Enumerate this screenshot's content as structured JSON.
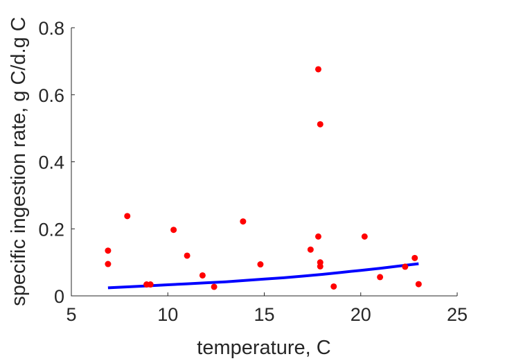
{
  "chart_data": {
    "type": "scatter",
    "title": "",
    "xlabel": "temperature, C",
    "ylabel": "specific ingestion rate, g C/d.g C",
    "xlim": [
      5,
      25
    ],
    "ylim": [
      0,
      0.8
    ],
    "xticks": [
      5,
      10,
      15,
      20,
      25
    ],
    "xtick_labels": [
      "5",
      "10",
      "15",
      "20",
      "25"
    ],
    "yticks": [
      0,
      0.2,
      0.4,
      0.6,
      0.8
    ],
    "ytick_labels": [
      "0",
      "0.2",
      "0.4",
      "0.6",
      "0.8"
    ],
    "grid": false,
    "series": [
      {
        "type": "scatter",
        "color": "#ff0000",
        "points": [
          {
            "x": 6.9,
            "y": 0.135
          },
          {
            "x": 6.9,
            "y": 0.095
          },
          {
            "x": 7.9,
            "y": 0.238
          },
          {
            "x": 8.9,
            "y": 0.034
          },
          {
            "x": 9.1,
            "y": 0.034
          },
          {
            "x": 10.3,
            "y": 0.197
          },
          {
            "x": 11.0,
            "y": 0.12
          },
          {
            "x": 11.8,
            "y": 0.061
          },
          {
            "x": 12.4,
            "y": 0.027
          },
          {
            "x": 13.9,
            "y": 0.222
          },
          {
            "x": 14.8,
            "y": 0.094
          },
          {
            "x": 17.4,
            "y": 0.138
          },
          {
            "x": 17.8,
            "y": 0.676
          },
          {
            "x": 17.9,
            "y": 0.512
          },
          {
            "x": 17.8,
            "y": 0.177
          },
          {
            "x": 17.9,
            "y": 0.1
          },
          {
            "x": 17.9,
            "y": 0.088
          },
          {
            "x": 18.6,
            "y": 0.028
          },
          {
            "x": 20.2,
            "y": 0.177
          },
          {
            "x": 21.0,
            "y": 0.056
          },
          {
            "x": 22.3,
            "y": 0.087
          },
          {
            "x": 22.8,
            "y": 0.113
          },
          {
            "x": 23.0,
            "y": 0.035
          }
        ]
      },
      {
        "type": "line",
        "color": "#0000ff",
        "x": [
          6.9,
          8,
          9,
          10,
          11,
          12,
          13,
          14,
          15,
          16,
          17,
          18,
          19,
          20,
          21,
          22,
          23
        ],
        "y": [
          0.024,
          0.027,
          0.03,
          0.033,
          0.036,
          0.039,
          0.042,
          0.046,
          0.05,
          0.054,
          0.059,
          0.064,
          0.07,
          0.076,
          0.082,
          0.089,
          0.096
        ]
      }
    ]
  }
}
